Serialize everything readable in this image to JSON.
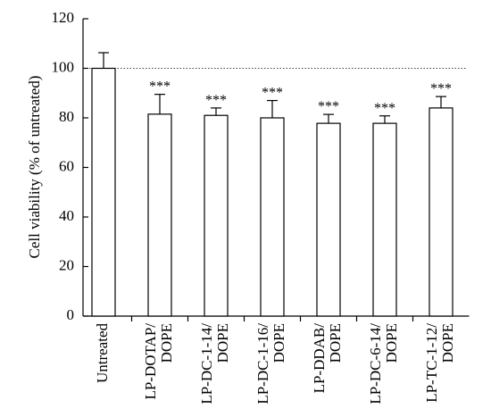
{
  "chart_data": {
    "type": "bar",
    "y_label": "Cell viability (% of untreated)",
    "categories": [
      [
        "Untreated"
      ],
      [
        "LP-DOTAP/",
        "DOPE"
      ],
      [
        "LP-DC-1-14/",
        "DOPE"
      ],
      [
        "LP-DC-1-16/",
        "DOPE"
      ],
      [
        "LP-DDAB/",
        "DOPE"
      ],
      [
        "LP-DC-6-14/",
        "DOPE"
      ],
      [
        "LP-TC-1-12/",
        "DOPE"
      ]
    ],
    "values": [
      100,
      81.5,
      81,
      80,
      77.8,
      77.8,
      84
    ],
    "errors": [
      6.3,
      8,
      3,
      7,
      3.6,
      3,
      4.6
    ],
    "annotations": [
      null,
      "***",
      "***",
      "***",
      "***",
      "***",
      "***"
    ],
    "reference_line": 100,
    "color": "#ffffff",
    "ylim": [
      0,
      120
    ],
    "yticks": [
      0,
      20,
      40,
      60,
      80,
      100,
      120
    ]
  }
}
